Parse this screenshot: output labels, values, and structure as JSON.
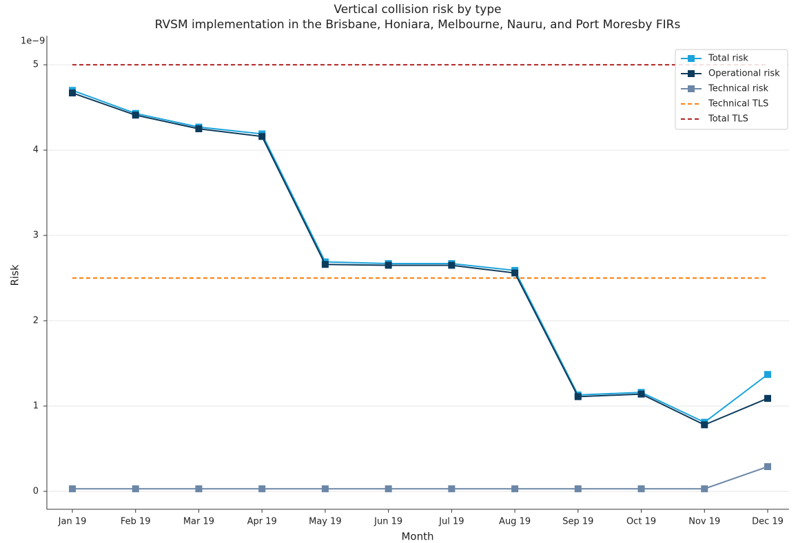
{
  "chart_data": {
    "type": "line",
    "title": "Vertical collision risk by type",
    "subtitle": "RVSM implementation in the Brisbane, Honiara, Melbourne, Nauru, and Port Moresby FIRs",
    "x_label": "Month",
    "y_label": "Risk",
    "y_offset_label": "1e−9",
    "categories": [
      "Jan 19",
      "Feb 19",
      "Mar 19",
      "Apr 19",
      "May 19",
      "Jun 19",
      "Jul 19",
      "Aug 19",
      "Sep 19",
      "Oct 19",
      "Nov 19",
      "Dec 19"
    ],
    "series": [
      {
        "name": "Total risk",
        "color": "#1aa3dc",
        "style": "solid",
        "marker": "square",
        "values": [
          4.7,
          4.43,
          4.27,
          4.19,
          2.69,
          2.67,
          2.67,
          2.59,
          1.13,
          1.16,
          0.81,
          1.37
        ]
      },
      {
        "name": "Operational risk",
        "color": "#0d3b5c",
        "style": "solid",
        "marker": "square",
        "values": [
          4.67,
          4.41,
          4.25,
          4.16,
          2.66,
          2.65,
          2.65,
          2.56,
          1.11,
          1.14,
          0.78,
          1.09
        ]
      },
      {
        "name": "Technical risk",
        "color": "#6b86a6",
        "style": "solid",
        "marker": "square",
        "values": [
          0.03,
          0.03,
          0.03,
          0.03,
          0.03,
          0.03,
          0.03,
          0.03,
          0.03,
          0.03,
          0.03,
          0.29
        ]
      },
      {
        "name": "Technical TLS",
        "color": "#ff7f0e",
        "style": "dashed",
        "values": [
          2.5,
          2.5,
          2.5,
          2.5,
          2.5,
          2.5,
          2.5,
          2.5,
          2.5,
          2.5,
          2.5,
          2.5
        ]
      },
      {
        "name": "Total TLS",
        "color": "#b22222",
        "style": "dashed",
        "values": [
          5,
          5,
          5,
          5,
          5,
          5,
          5,
          5,
          5,
          5,
          5,
          5
        ]
      }
    ],
    "ylim": [
      -0.21,
      5.34
    ],
    "yticks": [
      0,
      1,
      2,
      3,
      4,
      5
    ],
    "grid": true,
    "legend": "upper right"
  }
}
